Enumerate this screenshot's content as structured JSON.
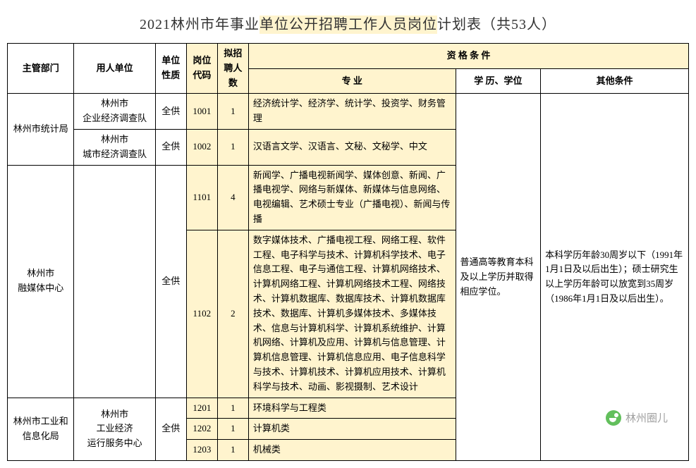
{
  "title_plain_left": "2021林州市年事业",
  "title_hl": "单位公开招聘工作人员岗位",
  "title_plain_right": "计划表（共53人）",
  "headers": {
    "dept": "主管部门",
    "unit": "用人单位",
    "type": "单位性质",
    "code": "岗位代码",
    "count": "拟招聘人数",
    "qual": "资 格 条 件",
    "major": "专 业",
    "edu": "学 历、学位",
    "other": "其他条件"
  },
  "dept1": "林州市统计局",
  "dept2": "林州市\n融媒体中心",
  "dept3": "林州市工业和信息化局",
  "unit1": "林州市\n企业经济调查队",
  "unit2": "林州市\n城市经济调查队",
  "unit3": "林州市\n工业经济\n运行服务中心",
  "type_all": "全供",
  "code1": "1001",
  "count1": "1",
  "major1": "经济统计学、经济学、统计学、投资学、财务管理",
  "code2": "1002",
  "count2": "1",
  "major2": "汉语言文学、汉语言、文秘、文秘学、中文",
  "code3": "1101",
  "count3": "4",
  "major3": "新闻学、广播电视新闻学、媒体创意、新闻、广播电视学、网络与新媒体、新媒体与信息网络、电视编辑、艺术硕士专业（广播电视）、新闻与传播",
  "code4": "1102",
  "count4": "2",
  "major4": "数字媒体技术、广播电视工程、网络工程、软件工程、电子科学与技术、计算机科学技术、电子信息工程、电子与通信工程、计算机网络技术、计算机网络工程、计算机网络技术工程、网络技术、计算机数据库、数据库技术、计算机数据库技术、数据库、计算机多媒体技术、多媒体技术、信息与计算机科学、计算机系统维护、计算机网络、计算机及应用、计算机与信息管理、计算机信息管理、计算机信息应用、电子信息科学与技术、计算机技术、计算机应用技术、计算机科学与技术、动画、影视摄制、艺术设计",
  "code5": "1201",
  "count5": "1",
  "major5": "环境科学与工程类",
  "code6": "1202",
  "count6": "1",
  "major6": "计算机类",
  "code7": "1203",
  "count7": "1",
  "major7": "机械类",
  "edu_text": "普通高等教育本科及以上学历并取得相应学位。",
  "other_text": "本科学历年龄30周岁以下（1991年1月1日及以后出生）；硕士研究生以上学历年龄可以放宽到35周岁（1986年1月1日及以后出生）。",
  "watermark": "林州圈儿",
  "colors": {
    "highlight_bg": "#fff4ce",
    "border": "#000000",
    "text": "#333333",
    "watermark_text": "#888888",
    "wm_icon": "#3cb034"
  }
}
